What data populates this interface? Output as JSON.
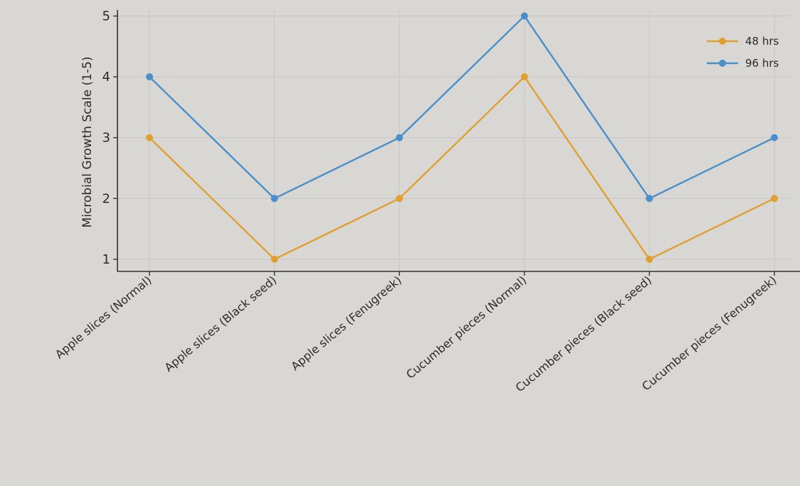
{
  "chart_data": {
    "type": "line",
    "categories": [
      "Apple slices (Normal)",
      "Apple slices (Black seed)",
      "Apple slices (Fenugreek)",
      "Cucumber pieces (Normal)",
      "Cucumber pieces (Black seed)",
      "Cucumber pieces (Fenugreek)"
    ],
    "series": [
      {
        "name": "48 hrs",
        "values": [
          3,
          1,
          2,
          4,
          1,
          2
        ],
        "color": "#e0a030"
      },
      {
        "name": "96 hrs",
        "values": [
          4,
          2,
          3,
          5,
          2,
          3
        ],
        "color": "#4a8fc9"
      }
    ],
    "title": "",
    "xlabel": "",
    "ylabel": "Microbial Growth Scale (1-5)",
    "ylim": [
      0.8,
      5.1
    ],
    "yticks": [
      "1",
      "2",
      "3",
      "4",
      "5"
    ],
    "grid": true,
    "legend_position": "top-right"
  }
}
